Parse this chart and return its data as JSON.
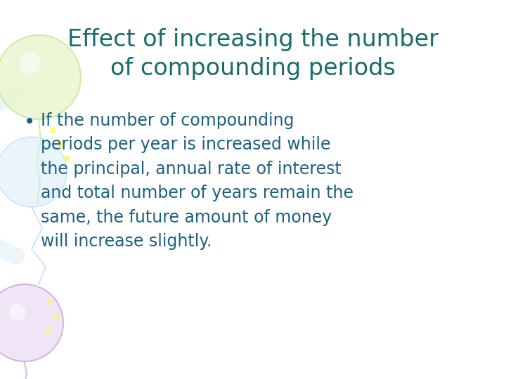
{
  "title_line1": "Effect of increasing the number",
  "title_line2": "of compounding periods",
  "title_color": "#1a6b6b",
  "bullet_text": "If the number of compounding\nperiods per year is increased while\nthe principal, annual rate of interest\nand total number of years remain the\nsame, the future amount of money\nwill increase slightly.",
  "bullet_color": "#1a6080",
  "bullet_dot_color": "#1a5e8a",
  "background_color": "#ffffff",
  "title_fontsize": 24,
  "body_fontsize": 17,
  "balloon_green_color": "#eaf5d0",
  "balloon_green_outline": "#cce898",
  "balloon_purple_color": "#ecddf5",
  "balloon_purple_outline": "#c8a0e0",
  "blue_balloon_color": "#d8eef8",
  "blue_balloon_outline": "#b0d4ee",
  "ribbon_yellow_color": "#f8f870",
  "ribbon_blue_color": "#c8e0f0"
}
